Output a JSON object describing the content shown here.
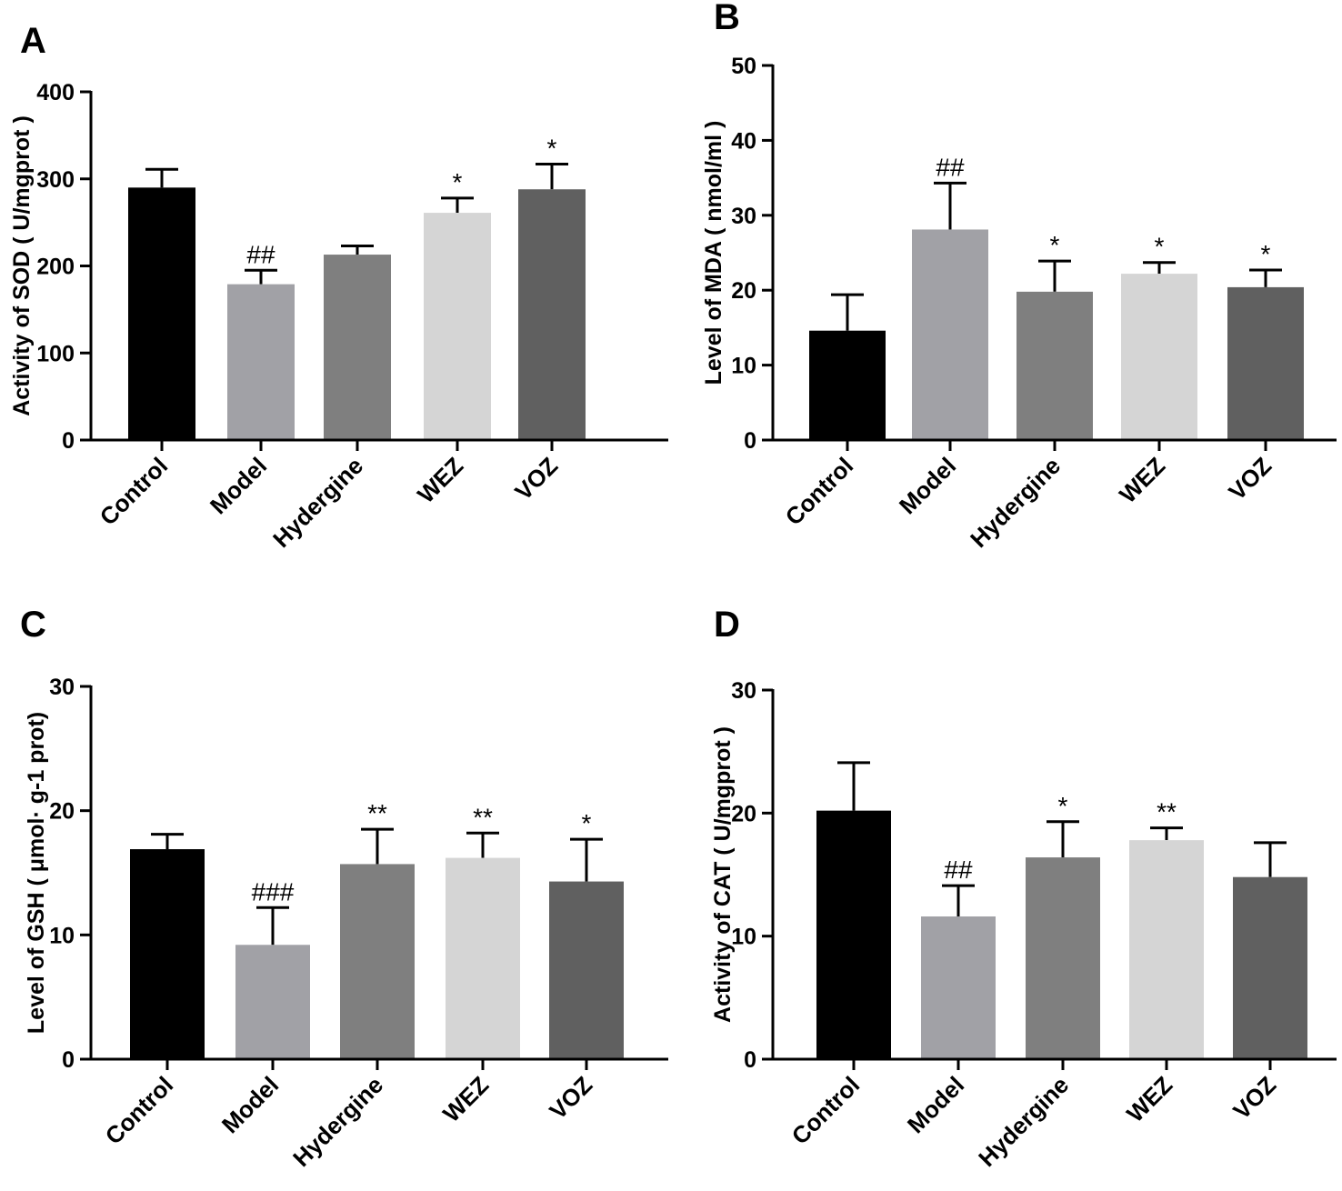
{
  "chart_data": [
    {
      "type": "bar",
      "panel": "A",
      "ylabel": "Activity of SOD ( U/mgprot )",
      "ylim": [
        0,
        400
      ],
      "yticks": [
        0,
        100,
        200,
        300,
        400
      ],
      "categories": [
        "Control",
        "Model",
        "Hydergine",
        "WEZ",
        "VOZ"
      ],
      "values": [
        290,
        179,
        213,
        261,
        288
      ],
      "errors": [
        21,
        16,
        10,
        17,
        29
      ],
      "annotations": [
        "",
        "##",
        "",
        "*",
        "*"
      ],
      "colors": [
        "#000000",
        "#a1a1a6",
        "#7f7f7f",
        "#d5d5d5",
        "#606060"
      ]
    },
    {
      "type": "bar",
      "panel": "B",
      "ylabel": "Level of MDA ( nmol/ml )",
      "ylim": [
        0,
        50
      ],
      "yticks": [
        0,
        10,
        20,
        30,
        40,
        50
      ],
      "categories": [
        "Control",
        "Model",
        "Hydergine",
        "WEZ",
        "VOZ"
      ],
      "values": [
        14.6,
        28.1,
        19.8,
        22.2,
        20.4
      ],
      "errors": [
        4.8,
        6.2,
        4.1,
        1.5,
        2.3
      ],
      "annotations": [
        "",
        "##",
        "*",
        "*",
        "*"
      ],
      "colors": [
        "#000000",
        "#a1a1a6",
        "#7f7f7f",
        "#d5d5d5",
        "#606060"
      ]
    },
    {
      "type": "bar",
      "panel": "C",
      "ylabel": "Level of GSH ( μmol· g-1 prot)",
      "ylim": [
        0,
        30
      ],
      "yticks": [
        0,
        10,
        20,
        30
      ],
      "categories": [
        "Control",
        "Model",
        "Hydergine",
        "WEZ",
        "VOZ"
      ],
      "values": [
        16.9,
        9.2,
        15.7,
        16.2,
        14.3
      ],
      "errors": [
        1.2,
        3.0,
        2.8,
        2.0,
        3.4
      ],
      "annotations": [
        "",
        "###",
        "**",
        "**",
        "*"
      ],
      "colors": [
        "#000000",
        "#a1a1a6",
        "#7f7f7f",
        "#d5d5d5",
        "#606060"
      ]
    },
    {
      "type": "bar",
      "panel": "D",
      "ylabel": "Activity of CAT ( U/mgprot )",
      "ylim": [
        0,
        30
      ],
      "yticks": [
        0,
        10,
        20,
        30
      ],
      "categories": [
        "Control",
        "Model",
        "Hydergine",
        "WEZ",
        "VOZ"
      ],
      "values": [
        20.2,
        11.6,
        16.4,
        17.8,
        14.8
      ],
      "errors": [
        3.9,
        2.5,
        2.9,
        1.0,
        2.8
      ],
      "annotations": [
        "",
        "##",
        "*",
        "**",
        ""
      ],
      "colors": [
        "#000000",
        "#a1a1a6",
        "#7f7f7f",
        "#d5d5d5",
        "#606060"
      ]
    }
  ]
}
